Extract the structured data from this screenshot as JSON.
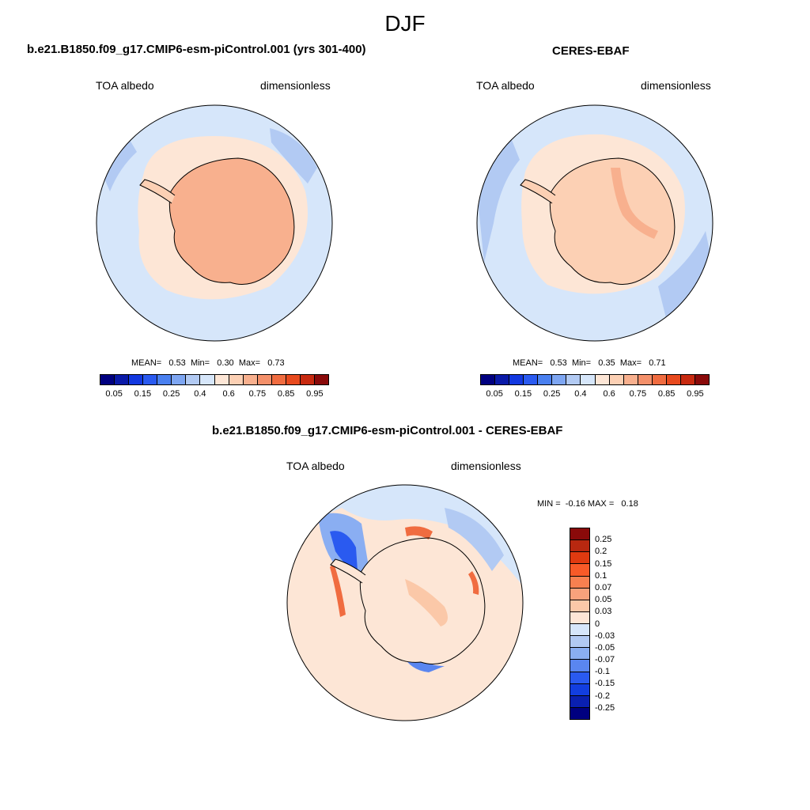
{
  "figure": {
    "title": "DJF"
  },
  "panels": [
    {
      "title": "b.e21.B1850.f09_g17.CMIP6-esm-piControl.001 (yrs 301-400)",
      "left_label": "TOA albedo",
      "right_label": "dimensionless",
      "stats": {
        "mean_label": "MEAN=",
        "mean": "0.53",
        "min_label": "Min=",
        "min": "0.30",
        "max_label": "Max=",
        "max": "0.73"
      }
    },
    {
      "title": "CERES-EBAF",
      "left_label": "TOA albedo",
      "right_label": "dimensionless",
      "stats": {
        "mean_label": "MEAN=",
        "mean": "0.53",
        "min_label": "Min=",
        "min": "0.35",
        "max_label": "Max=",
        "max": "0.71"
      }
    },
    {
      "title": "b.e21.B1850.f09_g17.CMIP6-esm-piControl.001 - CERES-EBAF",
      "left_label": "TOA albedo",
      "right_label": "dimensionless",
      "stats": {
        "min_label": "MIN =",
        "min": "-0.16",
        "max_label": "MAX =",
        "max": "0.18"
      }
    }
  ],
  "colorbar_top": {
    "colors": [
      "#000080",
      "#0a1aa8",
      "#1238e0",
      "#2a5af0",
      "#4a80f0",
      "#7ea6f2",
      "#b2caf3",
      "#d6e6fa",
      "#fde6d6",
      "#fcd0b4",
      "#f8b08e",
      "#f4906a",
      "#f06c40",
      "#e84a1e",
      "#c82a10",
      "#8a0a0a"
    ],
    "labels": [
      "0.05",
      "0.15",
      "0.25",
      "0.4",
      "0.6",
      "0.75",
      "0.85",
      "0.95"
    ]
  },
  "colorbar_diff": {
    "colors": [
      "#8a0a0a",
      "#b82810",
      "#e03a10",
      "#f85a28",
      "#f88050",
      "#f8a27c",
      "#fbc8a8",
      "#fde6d6",
      "#d6e6fa",
      "#b2caf3",
      "#8aaef2",
      "#5a86f0",
      "#2a5af0",
      "#123ee0",
      "#0a20b0",
      "#000080"
    ],
    "labels": [
      "0.25",
      "0.2",
      "0.15",
      "0.1",
      "0.07",
      "0.05",
      "0.03",
      "0",
      "-0.03",
      "-0.05",
      "-0.07",
      "-0.1",
      "-0.15",
      "-0.2",
      "-0.25"
    ]
  },
  "map_colors": {
    "ocean_light": "#d6e6fa",
    "ocean_mid": "#b2caf3",
    "sea_ice": "#fde6d6",
    "land_high": "#f8b08e",
    "land_mid": "#fcd0b4",
    "diff_pos": "#fde6d6",
    "diff_strong_pos": "#f06c40",
    "diff_neg": "#5a86f0"
  }
}
